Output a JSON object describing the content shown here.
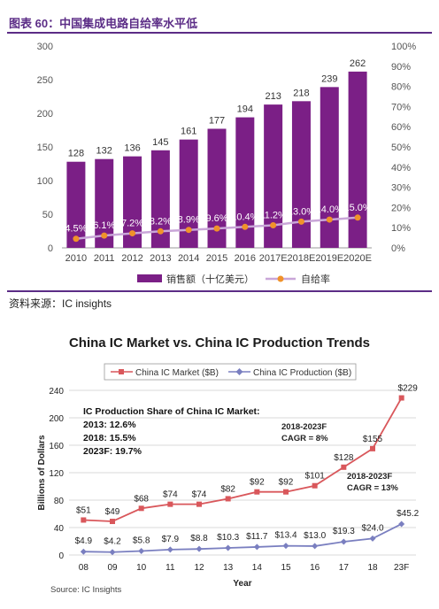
{
  "chart1": {
    "caption": "图表 60：中国集成电路自给率水平低",
    "source": "资料来源：IC insights",
    "chart_data": {
      "type": "bar",
      "categories": [
        "2010",
        "2011",
        "2012",
        "2013",
        "2014",
        "2015",
        "2016",
        "2017E",
        "2018E",
        "2019E",
        "2020E"
      ],
      "series": [
        {
          "name": "销售额（十亿美元）",
          "type": "bar",
          "axis": "left",
          "values": [
            128,
            132,
            136,
            145,
            161,
            177,
            194,
            213,
            218,
            239,
            262
          ]
        },
        {
          "name": "自给率",
          "type": "line",
          "axis": "right",
          "values": [
            4.5,
            6.1,
            7.2,
            8.2,
            8.9,
            9.6,
            10.4,
            11.2,
            13.0,
            14.0,
            15.0
          ]
        }
      ],
      "value_labels": [
        "128",
        "132",
        "136",
        "145",
        "161",
        "177",
        "194",
        "213",
        "218",
        "239",
        "262"
      ],
      "rate_labels": [
        "4.5%",
        "6.1%",
        "7.2%",
        "8.2%",
        "8.9%",
        "9.6%",
        "10.4%",
        "11.2%",
        "13.0%",
        "14.0%",
        "15.0%"
      ],
      "y_left_ticks": [
        "0",
        "50",
        "100",
        "150",
        "200",
        "250",
        "300"
      ],
      "y_right_ticks": [
        "0%",
        "10%",
        "20%",
        "30%",
        "40%",
        "50%",
        "60%",
        "70%",
        "80%",
        "90%",
        "100%"
      ],
      "ylim_left": [
        0,
        300
      ],
      "ylim_right": [
        0,
        100
      ],
      "legend_position": "bottom",
      "colors": {
        "bar": "#7b1f86",
        "line": "#c9a6d8",
        "marker": "#f0922a"
      }
    }
  },
  "chart2": {
    "title": "China IC Market vs. China IC Production Trends",
    "legend": [
      "China IC Market ($B)",
      "China IC Production ($B)"
    ],
    "source": "Source: IC Insights",
    "share_box": [
      "IC Production Share of China IC Market:",
      "2013: 12.6%",
      "2018: 15.5%",
      "2023F: 19.7%"
    ],
    "cagr_market": [
      "2018-2023F",
      "CAGR = 8%"
    ],
    "cagr_production": [
      "2018-2023F",
      "CAGR = 13%"
    ],
    "chart_data": {
      "type": "line",
      "x": [
        "08",
        "09",
        "10",
        "11",
        "12",
        "13",
        "14",
        "15",
        "16",
        "17",
        "18",
        "23F"
      ],
      "series": [
        {
          "name": "China IC Market ($B)",
          "values": [
            51,
            49,
            68,
            74,
            74,
            82,
            92,
            92,
            101,
            128,
            155,
            229
          ],
          "labels": [
            "$51",
            "$49",
            "$68",
            "$74",
            "$74",
            "$82",
            "$92",
            "$92",
            "$101",
            "$128",
            "$155",
            "$229"
          ]
        },
        {
          "name": "China IC Production ($B)",
          "values": [
            4.9,
            4.2,
            5.8,
            7.9,
            8.8,
            10.3,
            11.7,
            13.4,
            13.0,
            19.3,
            24.0,
            45.2
          ],
          "labels": [
            "$4.9",
            "$4.2",
            "$5.8",
            "$7.9",
            "$8.8",
            "$10.3",
            "$11.7",
            "$13.4",
            "$13.0",
            "$19.3",
            "$24.0",
            "$45.2"
          ]
        }
      ],
      "y_ticks": [
        "0",
        "40",
        "80",
        "120",
        "160",
        "200",
        "240"
      ],
      "ylim": [
        0,
        240
      ],
      "xlabel": "Year",
      "ylabel": "Billions of Dollars",
      "legend_position": "top",
      "colors": {
        "market": "#d9575b",
        "production": "#7a7fc0",
        "grid": "#d9d9d9",
        "cagr": "#c00000"
      }
    }
  }
}
